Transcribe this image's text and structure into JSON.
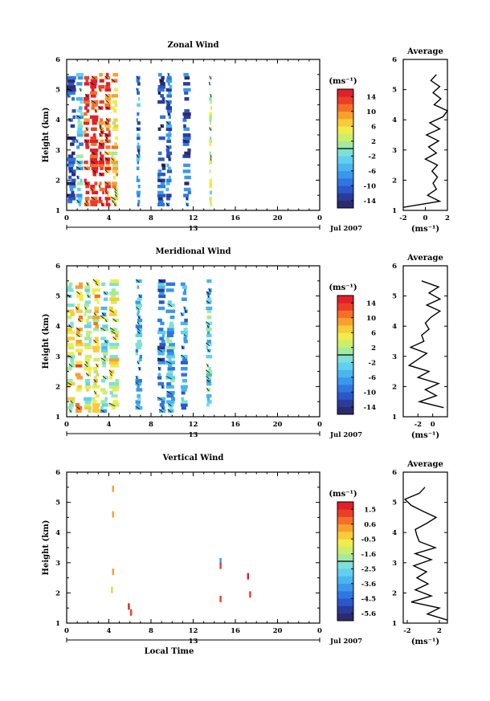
{
  "colors": {
    "scale": [
      "#2b2b6e",
      "#2a3b9a",
      "#2b57c8",
      "#2f77e0",
      "#3a98ea",
      "#49b6ef",
      "#5fd0ef",
      "#7fe0d8",
      "#a3ea9e",
      "#cbee6c",
      "#f0ec4a",
      "#f8cc38",
      "#f8a02e",
      "#f47028",
      "#ec3e26",
      "#e0202a"
    ],
    "axis": "#000000",
    "wind_line": "#000000"
  },
  "chart_data": [
    {
      "type": "heatmap",
      "panel": "zonal",
      "title": "Zonal Wind",
      "ylabel": "Height (km)",
      "xlim": [
        0,
        24
      ],
      "ylim": [
        1,
        6
      ],
      "x_ticks": [
        "0",
        "4",
        "8",
        "12",
        "16",
        "20",
        "0"
      ],
      "y_ticks": [
        "1",
        "2",
        "3",
        "4",
        "5",
        "6"
      ],
      "day_label": "13",
      "date_label": "Jul 2007",
      "colorbar": {
        "units": "(ms⁻¹)",
        "range": [
          -16,
          16
        ],
        "tick_labels": [
          "14",
          "10",
          "6",
          "2",
          "-2",
          "-6",
          "-10",
          "-14"
        ]
      },
      "data_bands": [
        {
          "x": [
            0.0,
            0.9
          ],
          "value": -12
        },
        {
          "x": [
            0.9,
            1.6
          ],
          "value": -4
        },
        {
          "x": [
            1.6,
            2.2
          ],
          "value": 14
        },
        {
          "x": [
            2.2,
            3.0
          ],
          "value": 15
        },
        {
          "x": [
            3.0,
            3.6
          ],
          "value": 13
        },
        {
          "x": [
            3.6,
            4.2
          ],
          "value": 12
        },
        {
          "x": [
            4.2,
            4.9
          ],
          "value": 6
        },
        {
          "x": [
            6.6,
            7.0
          ],
          "value": -8
        },
        {
          "x": [
            8.6,
            9.4
          ],
          "value": -12
        },
        {
          "x": [
            9.4,
            10.0
          ],
          "value": -9
        },
        {
          "x": [
            11.0,
            11.8
          ],
          "value": -11
        },
        {
          "x": [
            13.5,
            13.8
          ],
          "value": 1
        }
      ],
      "profile": {
        "title": "Average",
        "xlabel": "(ms⁻¹)",
        "xlim": [
          -2,
          2
        ],
        "x_ticks": [
          "-2",
          "0",
          "2"
        ],
        "height": [
          1.1,
          1.3,
          1.5,
          1.7,
          1.9,
          2.1,
          2.3,
          2.5,
          2.7,
          2.9,
          3.1,
          3.3,
          3.5,
          3.7,
          3.9,
          4.1,
          4.3,
          4.5,
          4.7,
          4.9,
          5.1,
          5.3,
          5.5
        ],
        "value": [
          -2.0,
          1.3,
          0.2,
          1.0,
          0.7,
          1.1,
          0.6,
          1.1,
          0.0,
          1.0,
          0.3,
          1.2,
          0.1,
          1.3,
          0.4,
          1.6,
          2.0,
          0.8,
          1.4,
          0.7,
          1.3,
          0.5,
          1.0
        ]
      }
    },
    {
      "type": "heatmap",
      "panel": "meridional",
      "title": "Meridional Wind",
      "ylabel": "Height (km)",
      "xlim": [
        0,
        24
      ],
      "ylim": [
        1,
        6
      ],
      "x_ticks": [
        "0",
        "4",
        "8",
        "12",
        "16",
        "20",
        "0"
      ],
      "y_ticks": [
        "1",
        "2",
        "3",
        "4",
        "5",
        "6"
      ],
      "day_label": "13",
      "date_label": "Jul 2007",
      "colorbar": {
        "units": "(ms⁻¹)",
        "range": [
          -16,
          16
        ],
        "tick_labels": [
          "14",
          "10",
          "6",
          "2",
          "-2",
          "-6",
          "-10",
          "-14"
        ]
      },
      "data_bands": [
        {
          "x": [
            0.0,
            0.8
          ],
          "value": 3
        },
        {
          "x": [
            0.8,
            1.6
          ],
          "value": 8
        },
        {
          "x": [
            1.6,
            2.4
          ],
          "value": 2
        },
        {
          "x": [
            2.4,
            3.2
          ],
          "value": 6
        },
        {
          "x": [
            3.2,
            4.0
          ],
          "value": -2
        },
        {
          "x": [
            4.0,
            5.0
          ],
          "value": 4
        },
        {
          "x": [
            6.5,
            7.2
          ],
          "value": -5
        },
        {
          "x": [
            8.6,
            9.4
          ],
          "value": -8
        },
        {
          "x": [
            9.4,
            10.3
          ],
          "value": -4
        },
        {
          "x": [
            10.8,
            11.5
          ],
          "value": -6
        },
        {
          "x": [
            13.2,
            13.8
          ],
          "value": -3
        }
      ],
      "profile": {
        "title": "Average",
        "xlabel": "(ms⁻¹)",
        "xlim": [
          -4,
          2
        ],
        "x_ticks": [
          "-2",
          "0"
        ],
        "height": [
          1.3,
          1.5,
          1.7,
          1.9,
          2.1,
          2.3,
          2.5,
          2.7,
          2.9,
          3.1,
          3.3,
          3.5,
          3.7,
          3.9,
          4.1,
          4.3,
          4.5,
          4.7,
          4.9,
          5.1,
          5.3,
          5.5
        ],
        "value": [
          1.5,
          -1.8,
          0.5,
          -1.0,
          0.8,
          -2.0,
          -0.5,
          -3.2,
          -2.0,
          -0.8,
          -3.0,
          -1.2,
          -1.5,
          -0.5,
          -1.0,
          -0.2,
          1.0,
          -0.8,
          1.0,
          -0.5,
          0.8,
          -1.5
        ]
      }
    },
    {
      "type": "heatmap",
      "panel": "vertical",
      "title": "Vertical Wind",
      "ylabel": "Height (km)",
      "xlabel": "Local Time",
      "xlim": [
        0,
        24
      ],
      "ylim": [
        1,
        6
      ],
      "x_ticks": [
        "0",
        "4",
        "8",
        "12",
        "16",
        "20",
        "0"
      ],
      "y_ticks": [
        "1",
        "2",
        "3",
        "4",
        "5",
        "6"
      ],
      "day_label": "13",
      "date_label": "Jul 2007",
      "colorbar": {
        "units": "(ms⁻¹)",
        "range": [
          -6.2,
          2.2
        ],
        "tick_labels": [
          "1.5",
          "0.6",
          "-0.5",
          "-1.6",
          "-2.5",
          "-3.6",
          "-4.5",
          "-5.6"
        ]
      },
      "data_points": [
        {
          "x": 4.4,
          "y": 5.45,
          "value": 0.5
        },
        {
          "x": 4.4,
          "y": 4.6,
          "value": 0.3
        },
        {
          "x": 4.4,
          "y": 2.7,
          "value": 0.4
        },
        {
          "x": 4.3,
          "y": 2.1,
          "value": -0.2
        },
        {
          "x": 5.9,
          "y": 1.55,
          "value": 1.8
        },
        {
          "x": 6.1,
          "y": 1.35,
          "value": 1.5
        },
        {
          "x": 14.6,
          "y": 3.05,
          "value": -3.8
        },
        {
          "x": 14.6,
          "y": 2.9,
          "value": 1.6
        },
        {
          "x": 14.6,
          "y": 1.8,
          "value": 1.2
        },
        {
          "x": 17.2,
          "y": 2.55,
          "value": 1.7
        },
        {
          "x": 17.4,
          "y": 1.95,
          "value": 1.6
        }
      ],
      "profile": {
        "title": "Average",
        "xlabel": "(ms⁻¹)",
        "xlim": [
          -2.5,
          3
        ],
        "x_ticks": [
          "-2",
          "2"
        ],
        "height": [
          1.1,
          1.3,
          1.5,
          1.7,
          1.9,
          2.1,
          2.3,
          2.5,
          2.7,
          2.9,
          3.1,
          3.3,
          3.5,
          3.7,
          3.9,
          4.1,
          4.3,
          4.5,
          4.7,
          4.9,
          5.1,
          5.3,
          5.5
        ],
        "value": [
          3.0,
          0.5,
          2.0,
          -1.5,
          1.0,
          -1.0,
          0.6,
          -0.8,
          0.4,
          -1.2,
          1.0,
          -1.0,
          1.5,
          -0.5,
          -0.8,
          -1.0,
          0.4,
          1.6,
          0.0,
          -1.5,
          -2.3,
          -0.5,
          0.2
        ]
      }
    }
  ]
}
